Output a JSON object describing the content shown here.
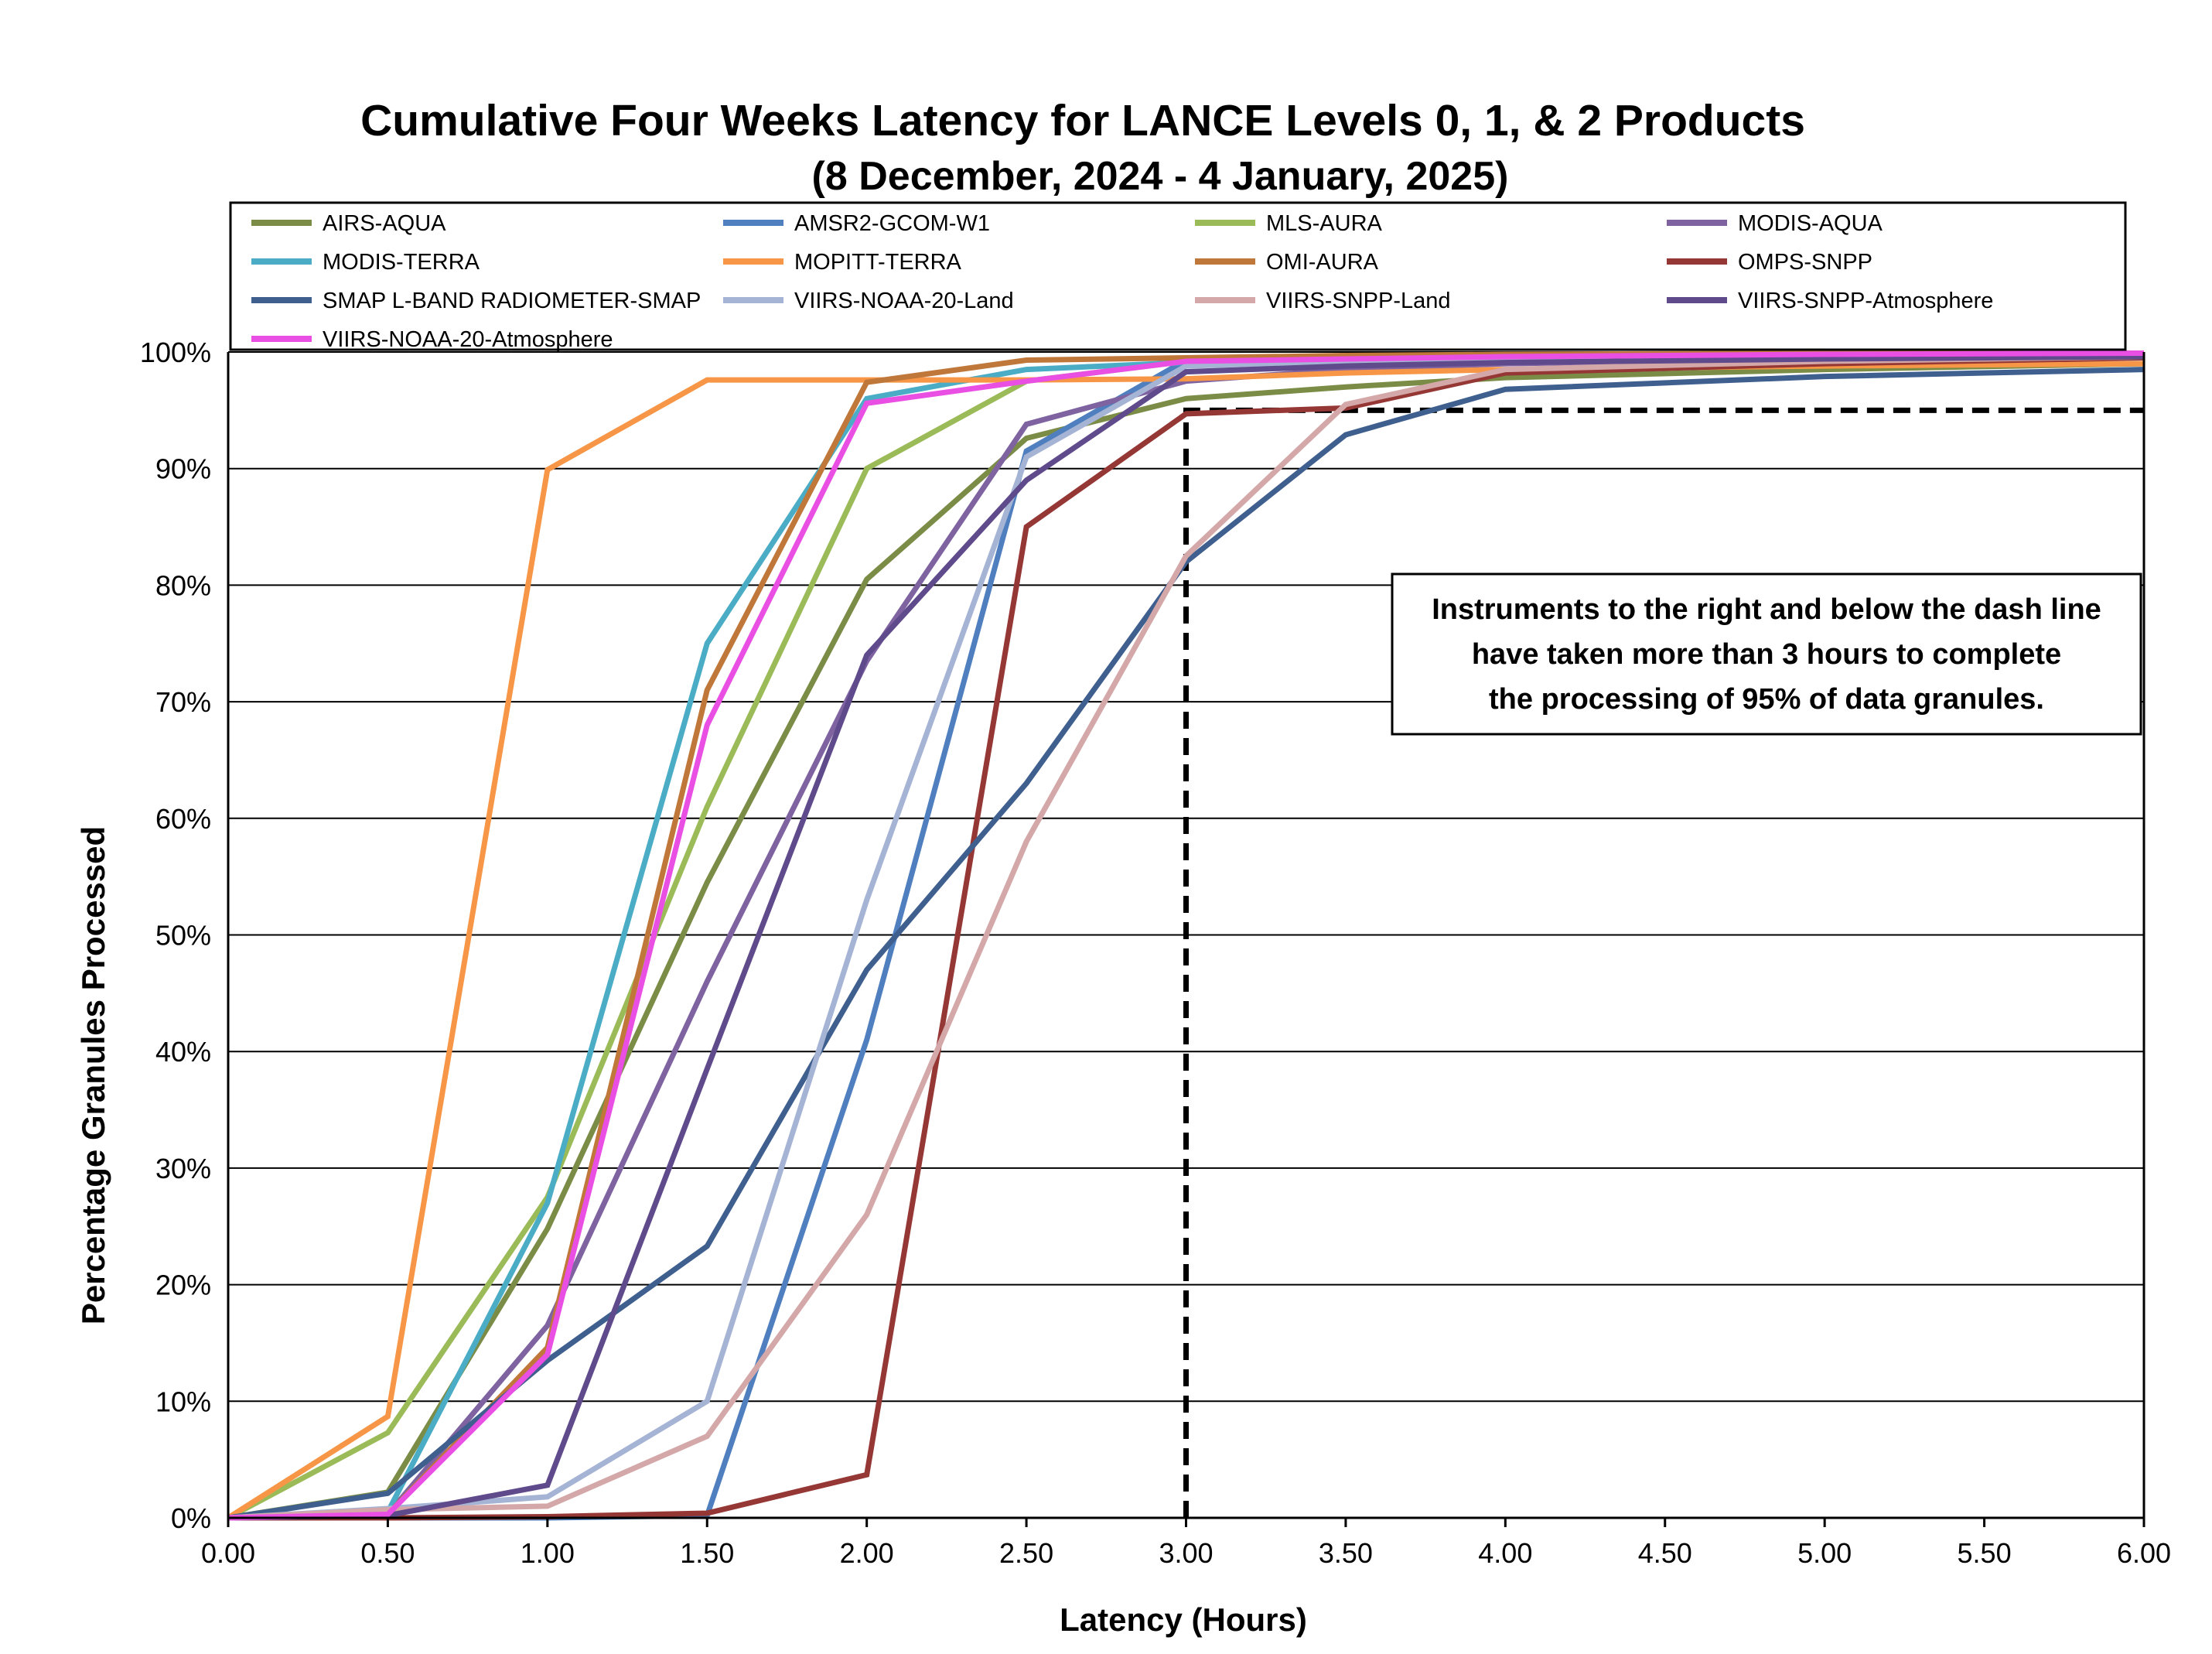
{
  "chart_data": {
    "type": "line",
    "title": "Cumulative Four Weeks Latency  for LANCE Levels 0, 1, & 2 Products",
    "subtitle": "(8 December, 2024  -  4 January, 2025)",
    "xlabel": "Latency (Hours)",
    "ylabel": "Percentage Granules Processed",
    "xlim": [
      0,
      6
    ],
    "ylim": [
      0,
      100
    ],
    "x_ticks": [
      "0.00",
      "0.50",
      "1.00",
      "1.50",
      "2.00",
      "2.50",
      "3.00",
      "3.50",
      "4.00",
      "4.50",
      "5.00",
      "5.50",
      "6.00"
    ],
    "y_ticks": [
      "0%",
      "10%",
      "20%",
      "30%",
      "40%",
      "50%",
      "60%",
      "70%",
      "80%",
      "90%",
      "100%"
    ],
    "grid": "horizontal",
    "legend_position": "top",
    "x": [
      0,
      0.5,
      1.0,
      1.5,
      2.0,
      2.5,
      3.0,
      3.5,
      4.0,
      5.0,
      6.0
    ],
    "series": [
      {
        "name": "AIRS-AQUA",
        "color": "#7a8c46",
        "values": [
          0,
          2.2,
          24.8,
          54.5,
          80.5,
          92.6,
          96.0,
          97.0,
          97.8,
          98.5,
          99.0
        ]
      },
      {
        "name": "AMSR2-GCOM-W1",
        "color": "#4f7fbf",
        "values": [
          0,
          0,
          0,
          0.2,
          41.0,
          91.5,
          99.3,
          99.6,
          99.7,
          99.8,
          99.9
        ]
      },
      {
        "name": "MLS-AURA",
        "color": "#9bbb59",
        "values": [
          0,
          7.3,
          27.5,
          61.0,
          90.0,
          97.5,
          99.2,
          99.6,
          99.7,
          99.8,
          99.9
        ]
      },
      {
        "name": "MODIS-AQUA",
        "color": "#7f63a1",
        "values": [
          0,
          0.3,
          16.5,
          46.0,
          73.5,
          93.8,
          97.5,
          98.5,
          99.0,
          99.4,
          99.7
        ]
      },
      {
        "name": "MODIS-TERRA",
        "color": "#4bacc6",
        "values": [
          0,
          0.5,
          27.0,
          75.0,
          96.0,
          98.5,
          99.1,
          99.5,
          99.6,
          99.8,
          99.9
        ]
      },
      {
        "name": "MOPITT-TERRA",
        "color": "#f79646",
        "values": [
          0,
          8.7,
          89.9,
          97.6,
          97.6,
          97.6,
          97.7,
          98.2,
          98.5,
          98.8,
          99.0
        ]
      },
      {
        "name": "OMI-AURA",
        "color": "#c0773a",
        "values": [
          0,
          0.3,
          14.6,
          71.0,
          97.4,
          99.3,
          99.5,
          99.7,
          99.8,
          99.9,
          99.9
        ]
      },
      {
        "name": "OMPS-SNPP",
        "color": "#953735",
        "values": [
          0,
          0,
          0.1,
          0.4,
          3.7,
          85.0,
          94.7,
          95.2,
          98.2,
          99.0,
          99.5
        ]
      },
      {
        "name": "SMAP L-BAND RADIOMETER-SMAP",
        "color": "#3f5f8f",
        "values": [
          0,
          2.1,
          13.5,
          23.3,
          47.0,
          63.0,
          82.0,
          92.9,
          96.8,
          97.9,
          98.5
        ]
      },
      {
        "name": "VIIRS-NOAA-20-Land",
        "color": "#a5b4d4",
        "values": [
          0,
          0.8,
          1.8,
          10.0,
          53.0,
          91.0,
          98.8,
          99.2,
          99.4,
          99.6,
          99.8
        ]
      },
      {
        "name": "VIIRS-SNPP-Land",
        "color": "#d4a8a8",
        "values": [
          0,
          0.7,
          1.0,
          7.0,
          26.0,
          58.0,
          82.5,
          95.5,
          98.5,
          99.2,
          99.6
        ]
      },
      {
        "name": "VIIRS-SNPP-Atmosphere",
        "color": "#5f4a8b",
        "values": [
          0,
          0.2,
          2.8,
          38.5,
          74.0,
          89.0,
          98.3,
          98.8,
          99.1,
          99.4,
          99.6
        ]
      },
      {
        "name": "VIIRS-NOAA-20-Atmosphere",
        "color": "#ea4fe4",
        "values": [
          0,
          0.3,
          14.0,
          68.0,
          95.6,
          97.5,
          99.2,
          99.4,
          99.6,
          99.8,
          99.9
        ]
      }
    ],
    "reference_line": {
      "color": "#000000",
      "x": [
        3.0,
        3.0,
        6.0
      ],
      "y": [
        0,
        95,
        95
      ],
      "style": "dashed"
    },
    "annotation": "Instruments to the right and below the dash line have taken more than 3 hours to complete the processing of 95% of data granules."
  }
}
